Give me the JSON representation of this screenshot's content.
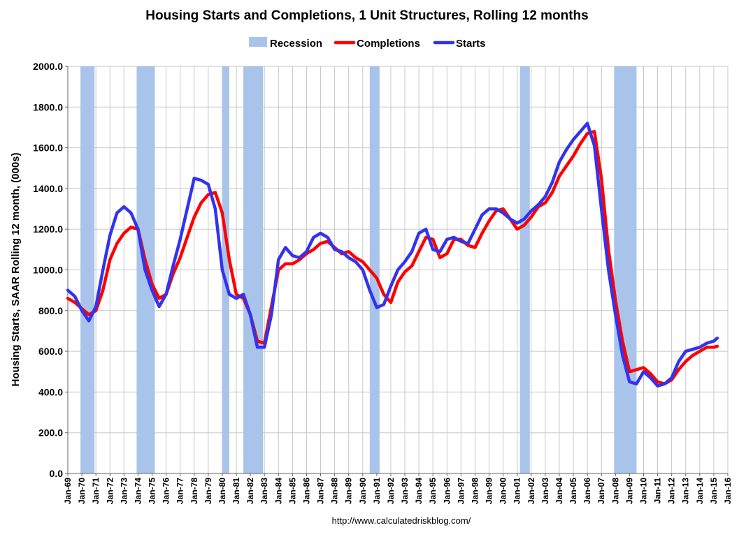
{
  "chart_data": {
    "type": "line",
    "title": "Housing Starts and Completions, 1 Unit Structures, Rolling 12 months",
    "ylabel": "Housing Starts, SAAR Rolling 12 month, (000s)",
    "xlabel": "",
    "source": "http://www.calculatedriskblog.com/",
    "ylim": [
      0,
      2000
    ],
    "xlim": [
      1969.0,
      2016.0
    ],
    "yticks": [
      "0.0",
      "200.0",
      "400.0",
      "600.0",
      "800.0",
      "1000.0",
      "1200.0",
      "1400.0",
      "1600.0",
      "1800.0",
      "2000.0"
    ],
    "xtick_labels": [
      "Jan-69",
      "Jan-70",
      "Jan-71",
      "Jan-72",
      "Jan-73",
      "Jan-74",
      "Jan-75",
      "Jan-76",
      "Jan-77",
      "Jan-78",
      "Jan-79",
      "Jan-80",
      "Jan-81",
      "Jan-82",
      "Jan-83",
      "Jan-84",
      "Jan-85",
      "Jan-86",
      "Jan-87",
      "Jan-88",
      "Jan-89",
      "Jan-90",
      "Jan-91",
      "Jan-92",
      "Jan-93",
      "Jan-94",
      "Jan-95",
      "Jan-96",
      "Jan-97",
      "Jan-98",
      "Jan-99",
      "Jan-00",
      "Jan-01",
      "Jan-02",
      "Jan-03",
      "Jan-04",
      "Jan-05",
      "Jan-06",
      "Jan-07",
      "Jan-08",
      "Jan-09",
      "Jan-10",
      "Jan-11",
      "Jan-12",
      "Jan-13",
      "Jan-14",
      "Jan-15",
      "Jan-16"
    ],
    "grid": true,
    "legend_position": "top-center",
    "legend": [
      {
        "name": "Recession",
        "kind": "band",
        "color": "#a9c4ea"
      },
      {
        "name": "Completions",
        "kind": "line",
        "color": "#ff0000"
      },
      {
        "name": "Starts",
        "kind": "line",
        "color": "#3333ee"
      }
    ],
    "recessions": [
      [
        1969.9,
        1970.9
      ],
      [
        1973.9,
        1975.2
      ],
      [
        1980.0,
        1980.5
      ],
      [
        1981.5,
        1982.9
      ],
      [
        1990.5,
        1991.2
      ],
      [
        2001.2,
        2001.9
      ],
      [
        2007.9,
        2009.5
      ]
    ],
    "series": [
      {
        "name": "Starts",
        "color": "#3333ee",
        "x": [
          1969.0,
          1969.5,
          1970.0,
          1970.5,
          1971.0,
          1971.5,
          1972.0,
          1972.5,
          1973.0,
          1973.5,
          1974.0,
          1974.5,
          1975.0,
          1975.5,
          1976.0,
          1976.5,
          1977.0,
          1977.5,
          1978.0,
          1978.5,
          1979.0,
          1979.5,
          1980.0,
          1980.5,
          1981.0,
          1981.5,
          1982.0,
          1982.5,
          1983.0,
          1983.5,
          1984.0,
          1984.5,
          1985.0,
          1985.5,
          1986.0,
          1986.5,
          1987.0,
          1987.5,
          1988.0,
          1988.5,
          1989.0,
          1989.5,
          1990.0,
          1990.5,
          1991.0,
          1991.5,
          1992.0,
          1992.5,
          1993.0,
          1993.5,
          1994.0,
          1994.5,
          1995.0,
          1995.5,
          1996.0,
          1996.5,
          1997.0,
          1997.5,
          1998.0,
          1998.5,
          1999.0,
          1999.5,
          2000.0,
          2000.5,
          2001.0,
          2001.5,
          2002.0,
          2002.5,
          2003.0,
          2003.5,
          2004.0,
          2004.5,
          2005.0,
          2005.5,
          2006.0,
          2006.5,
          2007.0,
          2007.5,
          2008.0,
          2008.5,
          2009.0,
          2009.5,
          2010.0,
          2010.5,
          2011.0,
          2011.5,
          2012.0,
          2012.5,
          2013.0,
          2013.5,
          2014.0,
          2014.5,
          2015.0,
          2015.25
        ],
        "values": [
          900,
          870,
          800,
          750,
          820,
          1000,
          1170,
          1280,
          1310,
          1280,
          1200,
          1000,
          900,
          820,
          880,
          1020,
          1150,
          1300,
          1450,
          1440,
          1420,
          1300,
          1000,
          880,
          860,
          880,
          780,
          620,
          620,
          780,
          1050,
          1110,
          1070,
          1060,
          1090,
          1160,
          1180,
          1160,
          1100,
          1090,
          1060,
          1040,
          1000,
          900,
          815,
          830,
          920,
          1000,
          1040,
          1090,
          1180,
          1200,
          1100,
          1090,
          1150,
          1160,
          1140,
          1130,
          1200,
          1270,
          1300,
          1300,
          1280,
          1250,
          1230,
          1250,
          1290,
          1320,
          1360,
          1430,
          1530,
          1590,
          1640,
          1680,
          1720,
          1610,
          1300,
          1000,
          780,
          580,
          450,
          440,
          500,
          470,
          430,
          440,
          470,
          550,
          600,
          610,
          620,
          640,
          650,
          665
        ]
      },
      {
        "name": "Completions",
        "color": "#ff0000",
        "x": [
          1969.0,
          1969.5,
          1970.0,
          1970.5,
          1971.0,
          1971.5,
          1972.0,
          1972.5,
          1973.0,
          1973.5,
          1974.0,
          1974.5,
          1975.0,
          1975.5,
          1976.0,
          1976.5,
          1977.0,
          1977.5,
          1978.0,
          1978.5,
          1979.0,
          1979.5,
          1980.0,
          1980.5,
          1981.0,
          1981.5,
          1982.0,
          1982.5,
          1983.0,
          1983.5,
          1984.0,
          1984.5,
          1985.0,
          1985.5,
          1986.0,
          1986.5,
          1987.0,
          1987.5,
          1988.0,
          1988.5,
          1989.0,
          1989.5,
          1990.0,
          1990.5,
          1991.0,
          1991.5,
          1992.0,
          1992.5,
          1993.0,
          1993.5,
          1994.0,
          1994.5,
          1995.0,
          1995.5,
          1996.0,
          1996.5,
          1997.0,
          1997.5,
          1998.0,
          1998.5,
          1999.0,
          1999.5,
          2000.0,
          2000.5,
          2001.0,
          2001.5,
          2002.0,
          2002.5,
          2003.0,
          2003.5,
          2004.0,
          2004.5,
          2005.0,
          2005.5,
          2006.0,
          2006.5,
          2007.0,
          2007.5,
          2008.0,
          2008.5,
          2009.0,
          2009.5,
          2010.0,
          2010.5,
          2011.0,
          2011.5,
          2012.0,
          2012.5,
          2013.0,
          2013.5,
          2014.0,
          2014.5,
          2015.0,
          2015.25
        ],
        "values": [
          860,
          840,
          810,
          780,
          800,
          900,
          1050,
          1130,
          1180,
          1210,
          1200,
          1050,
          930,
          860,
          880,
          980,
          1060,
          1160,
          1260,
          1330,
          1370,
          1380,
          1280,
          1050,
          880,
          860,
          780,
          650,
          640,
          820,
          1000,
          1030,
          1030,
          1050,
          1080,
          1100,
          1130,
          1140,
          1110,
          1080,
          1090,
          1060,
          1040,
          1000,
          960,
          880,
          840,
          940,
          990,
          1020,
          1090,
          1160,
          1150,
          1060,
          1080,
          1150,
          1150,
          1120,
          1110,
          1180,
          1240,
          1290,
          1300,
          1250,
          1200,
          1220,
          1260,
          1310,
          1330,
          1380,
          1460,
          1510,
          1560,
          1620,
          1670,
          1680,
          1450,
          1100,
          850,
          650,
          500,
          510,
          520,
          490,
          450,
          440,
          460,
          510,
          550,
          580,
          600,
          620,
          620,
          625
        ]
      }
    ]
  }
}
